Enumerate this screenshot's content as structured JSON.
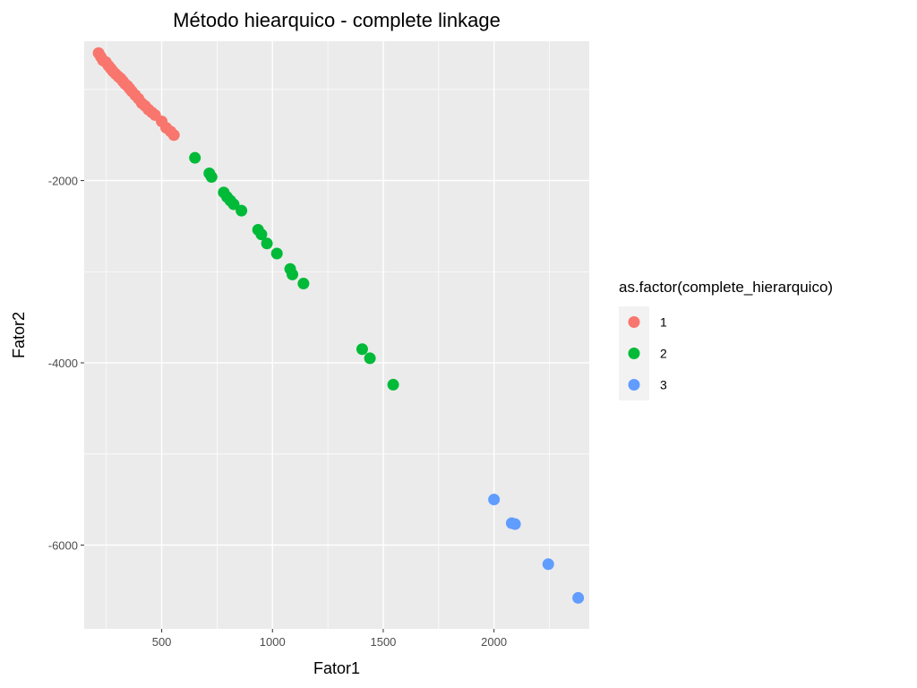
{
  "chart_data": {
    "type": "scatter",
    "title": "Método hiearquico - complete linkage",
    "xlabel": "Fator1",
    "ylabel": "Fator2",
    "xlim": [
      150,
      2430
    ],
    "ylim": [
      -6920,
      -470
    ],
    "xticks": [
      500,
      1000,
      1500,
      2000
    ],
    "yticks": [
      -2000,
      -4000,
      -6000
    ],
    "x_tick_labels": [
      "500",
      "1000",
      "1500",
      "2000"
    ],
    "y_tick_labels": [
      "-2000",
      "-4000",
      "-6000"
    ],
    "grid": true,
    "legend": {
      "title": "as.factor(complete_hierarquico)",
      "position": "right",
      "entries": [
        "1",
        "2",
        "3"
      ]
    },
    "colors": {
      "1": "#F8766D",
      "2": "#00BA38",
      "3": "#619CFF"
    },
    "series": [
      {
        "name": "1",
        "x": [
          215,
          225,
          235,
          248,
          260,
          270,
          280,
          292,
          305,
          315,
          325,
          335,
          345,
          355,
          365,
          380,
          395,
          410,
          425,
          440,
          455,
          470,
          500,
          520,
          540,
          555
        ],
        "y": [
          -600,
          -640,
          -680,
          -700,
          -740,
          -770,
          -800,
          -830,
          -860,
          -880,
          -910,
          -940,
          -960,
          -990,
          -1020,
          -1060,
          -1100,
          -1150,
          -1180,
          -1220,
          -1250,
          -1280,
          -1350,
          -1420,
          -1460,
          -1500
        ]
      },
      {
        "name": "2",
        "x": [
          650,
          715,
          725,
          780,
          795,
          810,
          825,
          860,
          935,
          950,
          975,
          1020,
          1080,
          1090,
          1140,
          1405,
          1440,
          1545
        ],
        "y": [
          -1750,
          -1920,
          -1960,
          -2130,
          -2180,
          -2220,
          -2260,
          -2330,
          -2540,
          -2590,
          -2690,
          -2800,
          -2970,
          -3030,
          -3130,
          -3850,
          -3950,
          -4240
        ]
      },
      {
        "name": "3",
        "x": [
          2000,
          2080,
          2095,
          2245,
          2380
        ],
        "y": [
          -5500,
          -5760,
          -5770,
          -6210,
          -6580
        ]
      }
    ]
  }
}
